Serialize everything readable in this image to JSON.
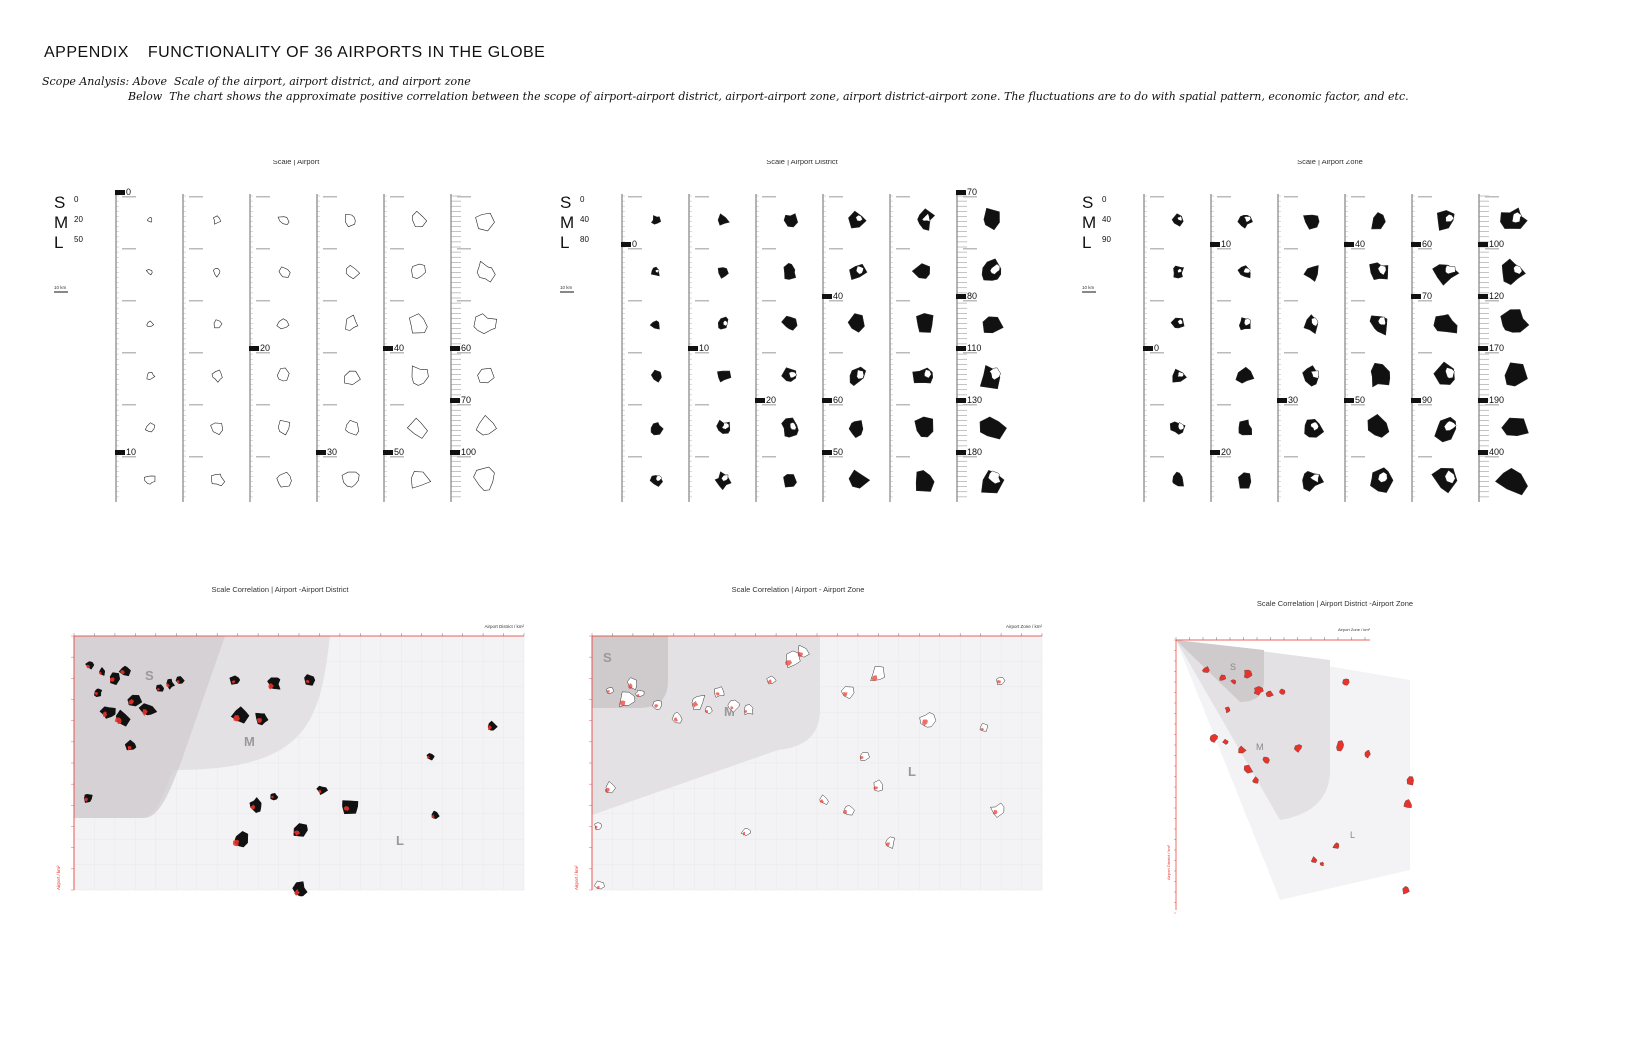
{
  "header": {
    "appendix": "APPENDIX",
    "title": "FUNCTIONALITY OF 36 AIRPORTS IN THE GLOBE",
    "scope_prefix": "Scope Analysis:",
    "above_label": "Above",
    "above_text": "Scale of the airport, airport district, and airport zone",
    "below_label": "Below",
    "below_text": "The chart shows the approximate positive correlation between the scope of airport-airport district, airport-airport zone, airport district-airport zone. The fluctuations are to do with spatial pattern, economic factor, and etc."
  },
  "scale_panels": [
    {
      "title": "Scale | Airport",
      "legend": [
        {
          "letter": "S",
          "value": "0"
        },
        {
          "letter": "M",
          "value": "20"
        },
        {
          "letter": "L",
          "value": "50"
        }
      ],
      "scale_bar": "10 km",
      "markers": [
        {
          "col": 0,
          "row": 0,
          "value": "0"
        },
        {
          "col": 0,
          "row": 5,
          "value": "10"
        },
        {
          "col": 2,
          "row": 3,
          "value": "20"
        },
        {
          "col": 3,
          "row": 5,
          "value": "30"
        },
        {
          "col": 4,
          "row": 3,
          "value": "40"
        },
        {
          "col": 4,
          "row": 5,
          "value": "50"
        },
        {
          "col": 5,
          "row": 3,
          "value": "60"
        },
        {
          "col": 5,
          "row": 4,
          "value": "70"
        },
        {
          "col": 5,
          "row": 5,
          "value": "100"
        }
      ],
      "fill": "outline"
    },
    {
      "title": "Scale | Airport District",
      "legend": [
        {
          "letter": "S",
          "value": "0"
        },
        {
          "letter": "M",
          "value": "40"
        },
        {
          "letter": "L",
          "value": "80"
        }
      ],
      "scale_bar": "10 km",
      "markers": [
        {
          "col": 0,
          "row": 1,
          "value": "0"
        },
        {
          "col": 1,
          "row": 3,
          "value": "10"
        },
        {
          "col": 2,
          "row": 4,
          "value": "20"
        },
        {
          "col": 3,
          "row": 2,
          "value": "40"
        },
        {
          "col": 3,
          "row": 4,
          "value": "60"
        },
        {
          "col": 3,
          "row": 5,
          "value": "50"
        },
        {
          "col": 5,
          "row": 0,
          "value": "70"
        },
        {
          "col": 5,
          "row": 2,
          "value": "80"
        },
        {
          "col": 5,
          "row": 3,
          "value": "110"
        },
        {
          "col": 5,
          "row": 4,
          "value": "130"
        },
        {
          "col": 5,
          "row": 5,
          "value": "180"
        }
      ],
      "fill": "solid"
    },
    {
      "title": "Scale | Airport Zone",
      "legend": [
        {
          "letter": "S",
          "value": "0"
        },
        {
          "letter": "M",
          "value": "40"
        },
        {
          "letter": "L",
          "value": "90"
        }
      ],
      "scale_bar": "10 km",
      "markers": [
        {
          "col": 0,
          "row": 3,
          "value": "0"
        },
        {
          "col": 1,
          "row": 1,
          "value": "10"
        },
        {
          "col": 1,
          "row": 5,
          "value": "20"
        },
        {
          "col": 2,
          "row": 4,
          "value": "30"
        },
        {
          "col": 3,
          "row": 1,
          "value": "40"
        },
        {
          "col": 3,
          "row": 4,
          "value": "50"
        },
        {
          "col": 4,
          "row": 1,
          "value": "60"
        },
        {
          "col": 4,
          "row": 2,
          "value": "70"
        },
        {
          "col": 4,
          "row": 4,
          "value": "90"
        },
        {
          "col": 5,
          "row": 1,
          "value": "100"
        },
        {
          "col": 5,
          "row": 2,
          "value": "120"
        },
        {
          "col": 5,
          "row": 3,
          "value": "170"
        },
        {
          "col": 5,
          "row": 4,
          "value": "190"
        },
        {
          "col": 5,
          "row": 5,
          "value": "400"
        }
      ],
      "fill": "solid"
    }
  ],
  "correlation_panels": [
    {
      "title": "Scale Correlation | Airport -Airport District",
      "x_axis_label": "Airport District / km²",
      "y_axis_label": "Airport / km²",
      "zones": [
        "S",
        "M",
        "L"
      ]
    },
    {
      "title": "Scale Correlation | Airport - Airport Zone",
      "x_axis_label": "Airport Zone / km²",
      "y_axis_label": "Airport / km²",
      "zones": [
        "S",
        "M",
        "L"
      ]
    },
    {
      "title": "Scale Correlation | Airport District -Airport Zone",
      "x_axis_label": "Airport Zone / km²",
      "y_axis_label": "Airport District / km²",
      "zones": [
        "S",
        "M",
        "L"
      ]
    }
  ],
  "colors": {
    "accent_red": "#e8332a",
    "zone_dark": "#cfcbcd",
    "zone_mid": "#e3e1e3",
    "zone_light": "#f3f3f5"
  }
}
